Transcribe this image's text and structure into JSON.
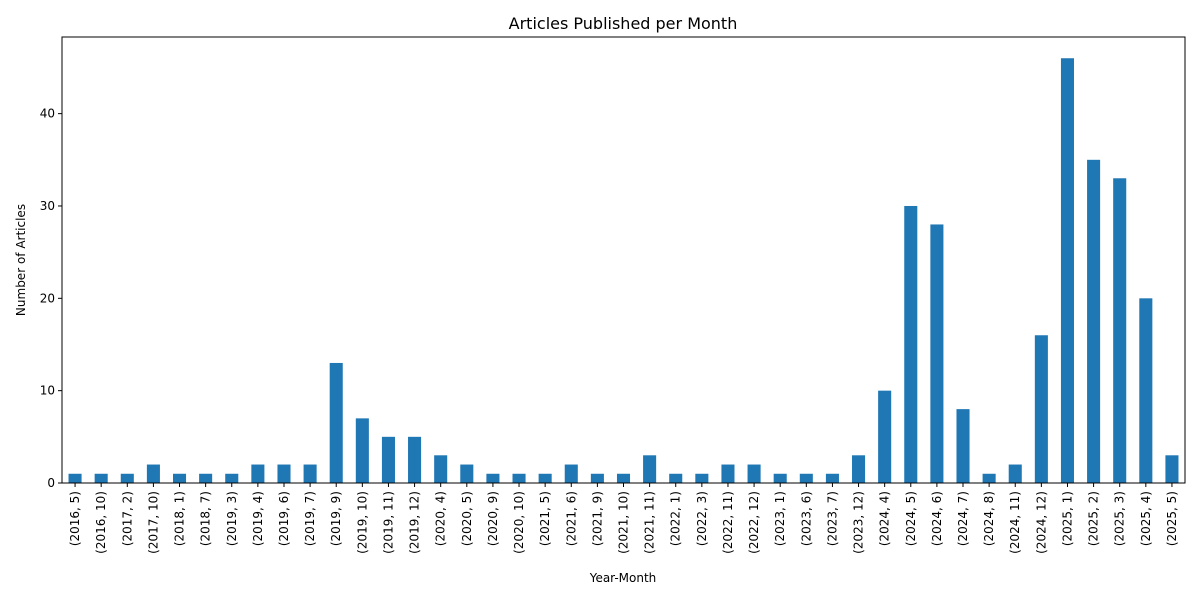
{
  "chart_data": {
    "type": "bar",
    "title": "Articles Published per Month",
    "xlabel": "Year-Month",
    "ylabel": "Number of Articles",
    "ylim": [
      0,
      48.3
    ],
    "yticks": [
      0,
      10,
      20,
      30,
      40
    ],
    "bar_color": "#1f77b4",
    "grid": false,
    "categories": [
      "(2016, 5)",
      "(2016, 10)",
      "(2017, 2)",
      "(2017, 10)",
      "(2018, 1)",
      "(2018, 7)",
      "(2019, 3)",
      "(2019, 4)",
      "(2019, 6)",
      "(2019, 7)",
      "(2019, 9)",
      "(2019, 10)",
      "(2019, 11)",
      "(2019, 12)",
      "(2020, 4)",
      "(2020, 5)",
      "(2020, 9)",
      "(2020, 10)",
      "(2021, 5)",
      "(2021, 6)",
      "(2021, 9)",
      "(2021, 10)",
      "(2021, 11)",
      "(2022, 1)",
      "(2022, 3)",
      "(2022, 11)",
      "(2022, 12)",
      "(2023, 1)",
      "(2023, 6)",
      "(2023, 7)",
      "(2023, 12)",
      "(2024, 4)",
      "(2024, 5)",
      "(2024, 6)",
      "(2024, 7)",
      "(2024, 8)",
      "(2024, 11)",
      "(2024, 12)",
      "(2025, 1)",
      "(2025, 2)",
      "(2025, 3)",
      "(2025, 4)",
      "(2025, 5)"
    ],
    "values": [
      1,
      1,
      1,
      2,
      1,
      1,
      1,
      2,
      2,
      2,
      13,
      7,
      5,
      5,
      3,
      2,
      1,
      1,
      1,
      2,
      1,
      1,
      3,
      1,
      1,
      2,
      2,
      1,
      1,
      1,
      3,
      10,
      30,
      28,
      8,
      1,
      2,
      16,
      46,
      35,
      33,
      20,
      3
    ]
  }
}
